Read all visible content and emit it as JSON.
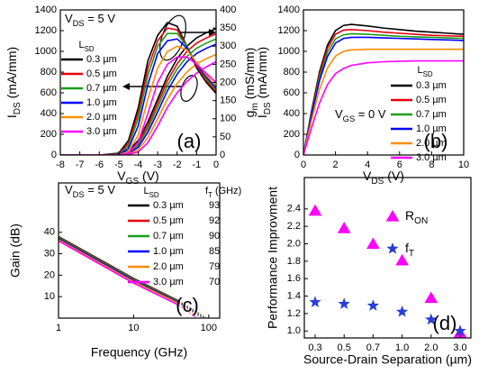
{
  "chart_data": [
    {
      "type": "line",
      "annotation": [
        "V",
        "DS",
        " = 5 V"
      ],
      "panel_label": "(a)",
      "x_label": [
        "V",
        "GS",
        " (V)"
      ],
      "y_label": [
        "I",
        "DS",
        " (mA/mm)"
      ],
      "y2_label": [
        "g",
        "m",
        " (mS/mm)"
      ],
      "legend_title": [
        "L",
        "SD"
      ],
      "xlim": [
        -8,
        0
      ],
      "xticks": [
        -8,
        -7,
        -6,
        -5,
        -4,
        -3,
        -2,
        -1,
        0
      ],
      "ylim": [
        0,
        1400
      ],
      "yticks": [
        0,
        200,
        400,
        600,
        800,
        1000,
        1200,
        1400
      ],
      "y2lim": [
        0,
        400
      ],
      "y2ticks": [
        0,
        50,
        100,
        150,
        200,
        250,
        300,
        350,
        400
      ],
      "x": [
        -8,
        -6,
        -5,
        -4.5,
        -4,
        -3.5,
        -3,
        -2.5,
        -2,
        -1.5,
        -1,
        -0.5,
        0
      ],
      "series": [
        {
          "name": "0.3 µm",
          "color": "#000000",
          "values": [
            0,
            0,
            5,
            40,
            140,
            320,
            540,
            760,
            930,
            1050,
            1130,
            1180,
            1220
          ]
        },
        {
          "name": "0.5 µm",
          "color": "#e8000b",
          "values": [
            0,
            0,
            3,
            30,
            115,
            285,
            500,
            715,
            880,
            1000,
            1080,
            1130,
            1170
          ]
        },
        {
          "name": "0.7 µm",
          "color": "#1a9e1a",
          "values": [
            0,
            0,
            2,
            22,
            95,
            255,
            460,
            670,
            830,
            950,
            1030,
            1080,
            1120
          ]
        },
        {
          "name": "1.0 µm",
          "color": "#0000ff",
          "values": [
            0,
            0,
            1,
            15,
            75,
            220,
            415,
            620,
            780,
            900,
            980,
            1030,
            1070
          ]
        },
        {
          "name": "2.0 µm",
          "color": "#ff8c00",
          "values": [
            0,
            0,
            0,
            8,
            50,
            170,
            350,
            540,
            690,
            800,
            880,
            930,
            970
          ]
        },
        {
          "name": "3.0 µm",
          "color": "#ff00ff",
          "values": [
            0,
            0,
            0,
            4,
            30,
            120,
            280,
            460,
            600,
            710,
            790,
            850,
            900
          ]
        },
        {
          "axis": "y2",
          "color": "#000000",
          "values": [
            0,
            0,
            5,
            40,
            130,
            260,
            330,
            365,
            355,
            300,
            240,
            200,
            170
          ]
        },
        {
          "axis": "y2",
          "color": "#e8000b",
          "values": [
            0,
            0,
            3,
            32,
            115,
            240,
            315,
            350,
            345,
            300,
            245,
            205,
            175
          ]
        },
        {
          "axis": "y2",
          "color": "#1a9e1a",
          "values": [
            0,
            0,
            2,
            25,
            100,
            220,
            300,
            335,
            335,
            300,
            250,
            210,
            180
          ]
        },
        {
          "axis": "y2",
          "color": "#0000ff",
          "values": [
            0,
            0,
            1,
            18,
            80,
            195,
            280,
            315,
            320,
            295,
            250,
            215,
            185
          ]
        },
        {
          "axis": "y2",
          "color": "#ff8c00",
          "values": [
            0,
            0,
            0,
            10,
            55,
            155,
            240,
            285,
            300,
            290,
            255,
            220,
            190
          ]
        },
        {
          "axis": "y2",
          "color": "#ff00ff",
          "values": [
            0,
            0,
            0,
            5,
            35,
            115,
            200,
            250,
            270,
            270,
            250,
            225,
            200
          ]
        }
      ]
    },
    {
      "type": "line",
      "annotation": [
        "V",
        "GS",
        " = 0 V"
      ],
      "panel_label": "(b)",
      "x_label": [
        "V",
        "DS",
        " (V)"
      ],
      "y_label": [
        "I",
        "DS",
        " (mA/mm)"
      ],
      "legend_title": [
        "L",
        "SD"
      ],
      "xlim": [
        0,
        10
      ],
      "xticks": [
        0,
        2,
        4,
        6,
        8,
        10
      ],
      "ylim": [
        0,
        1400
      ],
      "yticks": [
        0,
        200,
        400,
        600,
        800,
        1000,
        1200,
        1400
      ],
      "x": [
        0,
        0.5,
        1,
        1.5,
        2,
        2.5,
        3,
        4,
        5,
        6,
        7,
        8,
        9,
        10
      ],
      "series": [
        {
          "name": "0.3 µm",
          "color": "#000000",
          "values": [
            0,
            420,
            800,
            1060,
            1200,
            1250,
            1260,
            1245,
            1225,
            1210,
            1195,
            1185,
            1175,
            1165
          ]
        },
        {
          "name": "0.5 µm",
          "color": "#e8000b",
          "values": [
            0,
            405,
            775,
            1030,
            1165,
            1205,
            1210,
            1200,
            1185,
            1175,
            1165,
            1155,
            1150,
            1145
          ]
        },
        {
          "name": "0.7 µm",
          "color": "#1a9e1a",
          "values": [
            0,
            390,
            745,
            990,
            1120,
            1160,
            1170,
            1165,
            1155,
            1145,
            1140,
            1135,
            1130,
            1125
          ]
        },
        {
          "name": "1.0 µm",
          "color": "#0000ff",
          "values": [
            0,
            375,
            715,
            950,
            1080,
            1125,
            1135,
            1135,
            1130,
            1125,
            1120,
            1115,
            1110,
            1105
          ]
        },
        {
          "name": "2.0 µm",
          "color": "#ff8c00",
          "values": [
            0,
            330,
            630,
            840,
            955,
            1000,
            1015,
            1020,
            1020,
            1020,
            1020,
            1020,
            1020,
            1020
          ]
        },
        {
          "name": "3.0 µm",
          "color": "#ff00ff",
          "values": [
            0,
            260,
            500,
            680,
            785,
            835,
            865,
            890,
            900,
            905,
            908,
            908,
            908,
            908
          ]
        }
      ]
    },
    {
      "type": "line",
      "annotation": [
        "V",
        "DS",
        " = 5 V"
      ],
      "panel_label": "(c)",
      "x_label": "Frequency (GHz)",
      "y_label": "Gain (dB)",
      "legend_title": [
        "L",
        "SD"
      ],
      "ft_title": [
        "f",
        "T",
        " (GHz)"
      ],
      "log_x": true,
      "xlim": [
        1,
        140
      ],
      "xticks": [
        1,
        10,
        100
      ],
      "ylim": [
        0,
        63
      ],
      "yticks": [
        10,
        20,
        30,
        40
      ],
      "x": [
        1,
        10,
        40
      ],
      "series": [
        {
          "name": "0.3 µm",
          "color": "#000000",
          "values": [
            38,
            18.5,
            8
          ],
          "ft": 93
        },
        {
          "name": "0.5 µm",
          "color": "#e8000b",
          "values": [
            37.7,
            18.3,
            7.9
          ],
          "ft": 92
        },
        {
          "name": "0.7 µm",
          "color": "#1a9e1a",
          "values": [
            37.4,
            18,
            7.6
          ],
          "ft": 90
        },
        {
          "name": "1.0 µm",
          "color": "#0000ff",
          "values": [
            37,
            17.5,
            7.2
          ],
          "ft": 85
        },
        {
          "name": "2.0 µm",
          "color": "#ff8c00",
          "values": [
            36.5,
            17,
            6.8
          ],
          "ft": 79
        },
        {
          "name": "3.0 µm",
          "color": "#ff00ff",
          "values": [
            36,
            16.3,
            6
          ],
          "ft": 70
        }
      ]
    },
    {
      "type": "scatter",
      "panel_label": "(d)",
      "x_label": "Source-Drain Separation (µm)",
      "y_label": "Performance Improvment",
      "categories": [
        "0.3",
        "0.5",
        "0.7",
        "1.0",
        "2.0",
        "3.0"
      ],
      "ylim": [
        0.92,
        2.76
      ],
      "yticks": [
        {
          "value": 1,
          "label": "1.0"
        },
        1.2,
        1.4,
        1.6,
        1.8,
        {
          "value": 2,
          "label": "2.0"
        },
        2.2,
        2.4
      ],
      "series": [
        {
          "name": [
            "R",
            "ON"
          ],
          "color": "#ff00ff",
          "marker": "triangle",
          "values": [
            2.38,
            2.18,
            2.0,
            1.81,
            1.38,
            0.98
          ]
        },
        {
          "name": [
            "f",
            "T"
          ],
          "color": "#2a3fd8",
          "marker": "star",
          "values": [
            1.33,
            1.31,
            1.29,
            1.22,
            1.13,
            1.0
          ]
        }
      ]
    }
  ]
}
